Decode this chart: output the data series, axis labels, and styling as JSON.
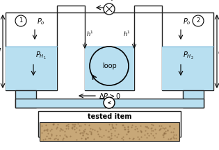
{
  "bg_color": "#ffffff",
  "water_color": "#b8dff0",
  "pipe_color": "#b8dff0",
  "edge_color": "#222222",
  "tested_color": "#c8a878",
  "lw": 1.0
}
